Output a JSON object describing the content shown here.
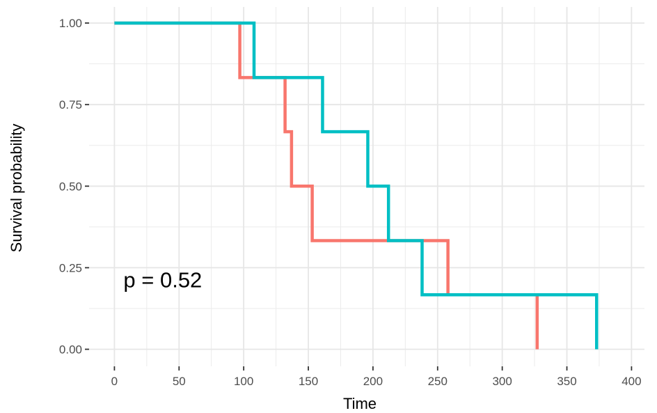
{
  "chart_data": {
    "type": "line",
    "step": true,
    "xlabel": "Time",
    "ylabel": "Survival probability",
    "xlim": [
      -8,
      410
    ],
    "ylim": [
      -0.05,
      1.05
    ],
    "x_ticks": [
      0,
      50,
      100,
      150,
      200,
      250,
      300,
      350,
      400
    ],
    "x_tick_labels": [
      "0",
      "50",
      "100",
      "150",
      "200",
      "250",
      "300",
      "350",
      "400"
    ],
    "y_ticks": [
      0,
      0.25,
      0.5,
      0.75,
      1.0
    ],
    "y_tick_labels": [
      "0.00",
      "0.25",
      "0.50",
      "0.75",
      "1.00"
    ],
    "grid": true,
    "legend": "none",
    "series": [
      {
        "color": "#F8766D",
        "points": [
          [
            0,
            1.0
          ],
          [
            97,
            1.0
          ],
          [
            97,
            0.833
          ],
          [
            132,
            0.833
          ],
          [
            132,
            0.667
          ],
          [
            137,
            0.667
          ],
          [
            137,
            0.5
          ],
          [
            153,
            0.5
          ],
          [
            153,
            0.333
          ],
          [
            258,
            0.333
          ],
          [
            258,
            0.167
          ],
          [
            327,
            0.167
          ],
          [
            327,
            0.0
          ]
        ]
      },
      {
        "color": "#00BFC4",
        "points": [
          [
            0,
            1.0
          ],
          [
            108,
            1.0
          ],
          [
            108,
            0.833
          ],
          [
            161,
            0.833
          ],
          [
            161,
            0.667
          ],
          [
            196,
            0.667
          ],
          [
            196,
            0.5
          ],
          [
            212,
            0.5
          ],
          [
            212,
            0.333
          ],
          [
            238,
            0.333
          ],
          [
            238,
            0.167
          ],
          [
            373,
            0.167
          ],
          [
            373,
            0.0
          ]
        ]
      }
    ],
    "annotations": [
      {
        "text": "p = 0.52",
        "x": 7,
        "y": 0.19
      }
    ]
  }
}
